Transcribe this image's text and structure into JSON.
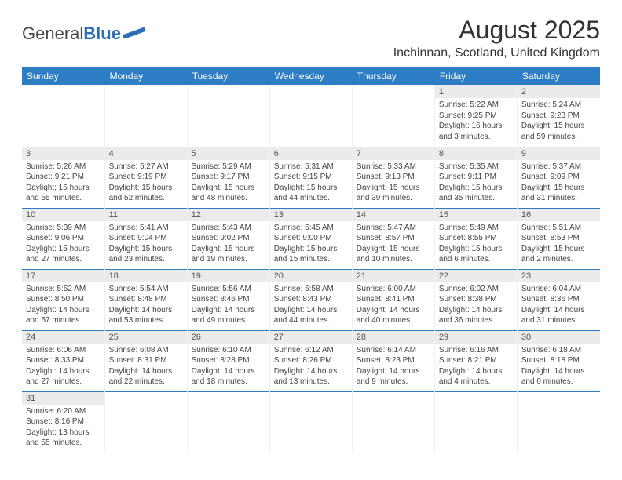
{
  "brand": {
    "part1": "General",
    "part2": "Blue"
  },
  "title": "August 2025",
  "location": "Inchinnan, Scotland, United Kingdom",
  "columns": [
    "Sunday",
    "Monday",
    "Tuesday",
    "Wednesday",
    "Thursday",
    "Friday",
    "Saturday"
  ],
  "colors": {
    "header_bg": "#2d7dc4",
    "header_fg": "#ffffff",
    "border": "#2d7dc4",
    "daynum_bg": "#eceaea",
    "text": "#333333"
  },
  "weeks": [
    [
      null,
      null,
      null,
      null,
      null,
      {
        "n": "1",
        "sr": "5:22 AM",
        "ss": "9:25 PM",
        "dl": "16 hours and 3 minutes."
      },
      {
        "n": "2",
        "sr": "5:24 AM",
        "ss": "9:23 PM",
        "dl": "15 hours and 59 minutes."
      }
    ],
    [
      {
        "n": "3",
        "sr": "5:26 AM",
        "ss": "9:21 PM",
        "dl": "15 hours and 55 minutes."
      },
      {
        "n": "4",
        "sr": "5:27 AM",
        "ss": "9:19 PM",
        "dl": "15 hours and 52 minutes."
      },
      {
        "n": "5",
        "sr": "5:29 AM",
        "ss": "9:17 PM",
        "dl": "15 hours and 48 minutes."
      },
      {
        "n": "6",
        "sr": "5:31 AM",
        "ss": "9:15 PM",
        "dl": "15 hours and 44 minutes."
      },
      {
        "n": "7",
        "sr": "5:33 AM",
        "ss": "9:13 PM",
        "dl": "15 hours and 39 minutes."
      },
      {
        "n": "8",
        "sr": "5:35 AM",
        "ss": "9:11 PM",
        "dl": "15 hours and 35 minutes."
      },
      {
        "n": "9",
        "sr": "5:37 AM",
        "ss": "9:09 PM",
        "dl": "15 hours and 31 minutes."
      }
    ],
    [
      {
        "n": "10",
        "sr": "5:39 AM",
        "ss": "9:06 PM",
        "dl": "15 hours and 27 minutes."
      },
      {
        "n": "11",
        "sr": "5:41 AM",
        "ss": "9:04 PM",
        "dl": "15 hours and 23 minutes."
      },
      {
        "n": "12",
        "sr": "5:43 AM",
        "ss": "9:02 PM",
        "dl": "15 hours and 19 minutes."
      },
      {
        "n": "13",
        "sr": "5:45 AM",
        "ss": "9:00 PM",
        "dl": "15 hours and 15 minutes."
      },
      {
        "n": "14",
        "sr": "5:47 AM",
        "ss": "8:57 PM",
        "dl": "15 hours and 10 minutes."
      },
      {
        "n": "15",
        "sr": "5:49 AM",
        "ss": "8:55 PM",
        "dl": "15 hours and 6 minutes."
      },
      {
        "n": "16",
        "sr": "5:51 AM",
        "ss": "8:53 PM",
        "dl": "15 hours and 2 minutes."
      }
    ],
    [
      {
        "n": "17",
        "sr": "5:52 AM",
        "ss": "8:50 PM",
        "dl": "14 hours and 57 minutes."
      },
      {
        "n": "18",
        "sr": "5:54 AM",
        "ss": "8:48 PM",
        "dl": "14 hours and 53 minutes."
      },
      {
        "n": "19",
        "sr": "5:56 AM",
        "ss": "8:46 PM",
        "dl": "14 hours and 49 minutes."
      },
      {
        "n": "20",
        "sr": "5:58 AM",
        "ss": "8:43 PM",
        "dl": "14 hours and 44 minutes."
      },
      {
        "n": "21",
        "sr": "6:00 AM",
        "ss": "8:41 PM",
        "dl": "14 hours and 40 minutes."
      },
      {
        "n": "22",
        "sr": "6:02 AM",
        "ss": "8:38 PM",
        "dl": "14 hours and 36 minutes."
      },
      {
        "n": "23",
        "sr": "6:04 AM",
        "ss": "8:36 PM",
        "dl": "14 hours and 31 minutes."
      }
    ],
    [
      {
        "n": "24",
        "sr": "6:06 AM",
        "ss": "8:33 PM",
        "dl": "14 hours and 27 minutes."
      },
      {
        "n": "25",
        "sr": "6:08 AM",
        "ss": "8:31 PM",
        "dl": "14 hours and 22 minutes."
      },
      {
        "n": "26",
        "sr": "6:10 AM",
        "ss": "8:28 PM",
        "dl": "14 hours and 18 minutes."
      },
      {
        "n": "27",
        "sr": "6:12 AM",
        "ss": "8:26 PM",
        "dl": "14 hours and 13 minutes."
      },
      {
        "n": "28",
        "sr": "6:14 AM",
        "ss": "8:23 PM",
        "dl": "14 hours and 9 minutes."
      },
      {
        "n": "29",
        "sr": "6:16 AM",
        "ss": "8:21 PM",
        "dl": "14 hours and 4 minutes."
      },
      {
        "n": "30",
        "sr": "6:18 AM",
        "ss": "8:18 PM",
        "dl": "14 hours and 0 minutes."
      }
    ],
    [
      {
        "n": "31",
        "sr": "6:20 AM",
        "ss": "8:16 PM",
        "dl": "13 hours and 55 minutes."
      },
      null,
      null,
      null,
      null,
      null,
      null
    ]
  ],
  "labels": {
    "sunrise": "Sunrise:",
    "sunset": "Sunset:",
    "daylight": "Daylight:"
  }
}
